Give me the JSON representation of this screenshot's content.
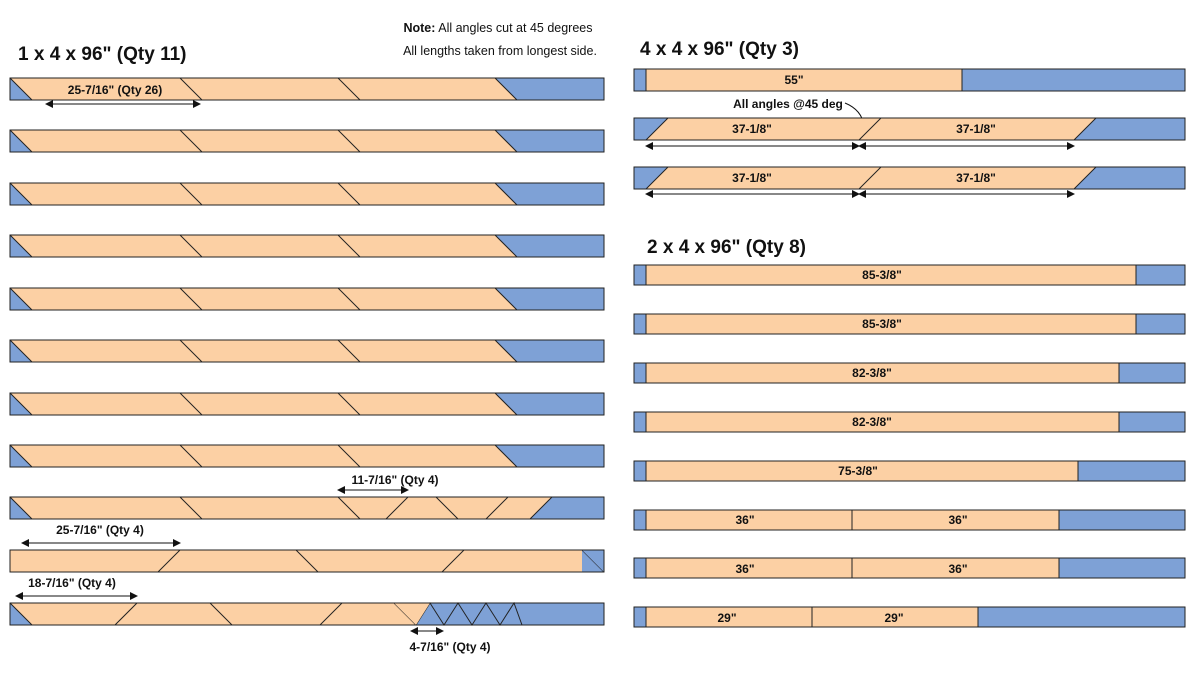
{
  "note": {
    "bold": "Note:",
    "line1": "All angles cut at 45 degrees",
    "line2": "All lengths taken from longest side."
  },
  "sections": {
    "s1x4": {
      "title": "1 x 4 x 96\" (Qty 11)"
    },
    "s4x4": {
      "title": "4 x 4 x 96\" (Qty 3)"
    },
    "s2x4": {
      "title": "2 x 4 x 96\" (Qty 8)"
    }
  },
  "labels": {
    "l1x4_a": "25-7/16\" (Qty 26)",
    "l1x4_b": "11-7/16\" (Qty 4)",
    "l1x4_c": "25-7/16\" (Qty 4)",
    "l1x4_d": "18-7/16\" (Qty 4)",
    "l1x4_e": "4-7/16\" (Qty 4)",
    "l4x4_a": "55\"",
    "l4x4_note": "All angles @45 deg",
    "l4x4_b": "37-1/8\"",
    "l2x4_a": "85-3/8\"",
    "l2x4_b": "82-3/8\"",
    "l2x4_c": "75-3/8\"",
    "l2x4_d": "36\"",
    "l2x4_e": "29\""
  },
  "colors": {
    "board": "#fcd0a4",
    "waste": "#7ea1d6",
    "outline": "#222222"
  }
}
